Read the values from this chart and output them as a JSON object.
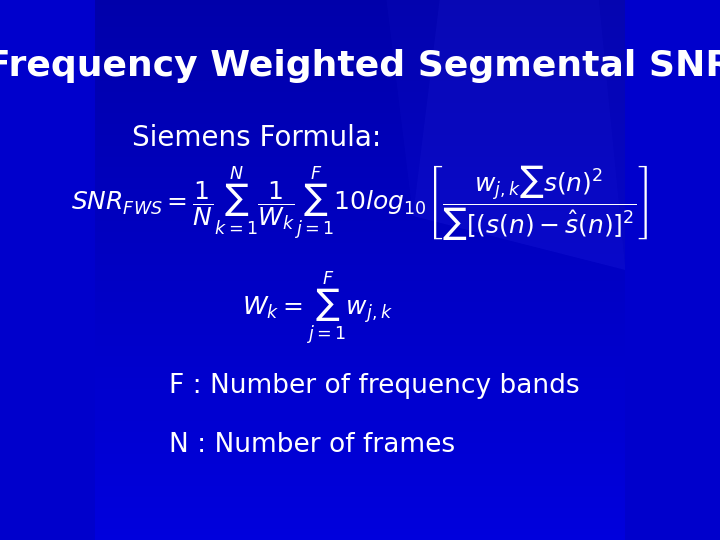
{
  "title": "Frequency Weighted Segmental SNR",
  "title_fontsize": 26,
  "title_color": "white",
  "title_fontstyle": "bold",
  "subtitle": "Siemens Formula:",
  "subtitle_fontsize": 20,
  "subtitle_color": "white",
  "formula_main": "$SNR_{FWS} = \\dfrac{1}{N}\\sum_{k=1}^{N}\\dfrac{1}{W_k}\\sum_{j=1}^{F}10log_{10}\\left[\\dfrac{w_{j,k}\\sum s(n)^2}{\\sum[(s(n)-\\hat{s}(n)]^2}\\right]$",
  "formula_wk": "$W_k = \\sum_{j=1}^{F} w_{j,k}$",
  "label_F": "F : Number of frequency bands",
  "label_N": "N : Number of frames",
  "formula_fontsize": 18,
  "label_fontsize": 19,
  "bg_color_top": "#0000aa",
  "bg_color_bottom": "#000088",
  "text_color": "white"
}
